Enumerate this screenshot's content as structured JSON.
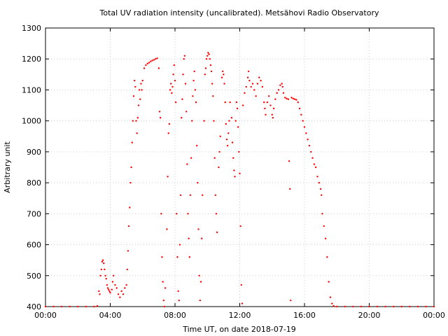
{
  "chart_data": {
    "type": "scatter",
    "title": "Total UV radiation intensity (uncalibrated). Metsähovi Radio Observatory",
    "xlabel": "Time UT, on date 2018-07-19",
    "ylabel": "Arbitrary unit",
    "xlim": [
      0,
      24
    ],
    "ylim": [
      400,
      1300
    ],
    "x_ticks": [
      {
        "value": 0,
        "label": "00:00"
      },
      {
        "value": 4,
        "label": "04:00"
      },
      {
        "value": 8,
        "label": "08:00"
      },
      {
        "value": 12,
        "label": "12:00"
      },
      {
        "value": 16,
        "label": "16:00"
      },
      {
        "value": 20,
        "label": "20:00"
      },
      {
        "value": 24,
        "label": "00:00"
      }
    ],
    "y_ticks": [
      {
        "value": 400,
        "label": "400"
      },
      {
        "value": 500,
        "label": "500"
      },
      {
        "value": 600,
        "label": "600"
      },
      {
        "value": 700,
        "label": "700"
      },
      {
        "value": 800,
        "label": "800"
      },
      {
        "value": 900,
        "label": "900"
      },
      {
        "value": 1000,
        "label": "1000"
      },
      {
        "value": 1100,
        "label": "1100"
      },
      {
        "value": 1200,
        "label": "1200"
      },
      {
        "value": 1300,
        "label": "1300"
      }
    ],
    "grid": true,
    "marker_color": "#ff0000",
    "series": [
      {
        "points": [
          [
            0.0,
            400
          ],
          [
            0.5,
            400
          ],
          [
            1.0,
            400
          ],
          [
            1.5,
            400
          ],
          [
            2.0,
            400
          ],
          [
            2.5,
            400
          ],
          [
            3.0,
            400
          ],
          [
            3.2,
            402
          ],
          [
            3.3,
            450
          ],
          [
            3.35,
            440
          ],
          [
            3.4,
            500
          ],
          [
            3.45,
            520
          ],
          [
            3.5,
            545
          ],
          [
            3.55,
            550
          ],
          [
            3.6,
            540
          ],
          [
            3.65,
            520
          ],
          [
            3.7,
            500
          ],
          [
            3.75,
            490
          ],
          [
            3.8,
            470
          ],
          [
            3.85,
            460
          ],
          [
            3.9,
            455
          ],
          [
            3.95,
            450
          ],
          [
            4.0,
            445
          ],
          [
            4.1,
            455
          ],
          [
            4.15,
            480
          ],
          [
            4.2,
            500
          ],
          [
            4.3,
            470
          ],
          [
            4.4,
            460
          ],
          [
            4.5,
            440
          ],
          [
            4.6,
            430
          ],
          [
            4.7,
            450
          ],
          [
            4.8,
            440
          ],
          [
            4.9,
            460
          ],
          [
            5.0,
            470
          ],
          [
            5.05,
            520
          ],
          [
            5.1,
            580
          ],
          [
            5.15,
            660
          ],
          [
            5.2,
            720
          ],
          [
            5.25,
            800
          ],
          [
            5.3,
            850
          ],
          [
            5.35,
            930
          ],
          [
            5.4,
            1000
          ],
          [
            5.45,
            1080
          ],
          [
            5.5,
            1130
          ],
          [
            5.55,
            1110
          ],
          [
            5.6,
            1000
          ],
          [
            5.65,
            960
          ],
          [
            5.7,
            1010
          ],
          [
            5.75,
            1050
          ],
          [
            5.8,
            1100
          ],
          [
            5.85,
            1070
          ],
          [
            5.9,
            1120
          ],
          [
            5.95,
            1100
          ],
          [
            6.0,
            1130
          ],
          [
            6.1,
            1170
          ],
          [
            6.2,
            1180
          ],
          [
            6.3,
            1185
          ],
          [
            6.4,
            1188
          ],
          [
            6.5,
            1192
          ],
          [
            6.6,
            1195
          ],
          [
            6.7,
            1197
          ],
          [
            6.8,
            1200
          ],
          [
            6.9,
            1202
          ],
          [
            7.0,
            1170
          ],
          [
            7.05,
            1030
          ],
          [
            7.1,
            1010
          ],
          [
            7.15,
            700
          ],
          [
            7.2,
            560
          ],
          [
            7.25,
            480
          ],
          [
            7.3,
            420
          ],
          [
            7.35,
            400
          ],
          [
            7.4,
            460
          ],
          [
            7.5,
            650
          ],
          [
            7.55,
            820
          ],
          [
            7.6,
            960
          ],
          [
            7.65,
            990
          ],
          [
            7.7,
            1100
          ],
          [
            7.75,
            1120
          ],
          [
            7.8,
            1090
          ],
          [
            7.85,
            1110
          ],
          [
            7.9,
            1150
          ],
          [
            7.95,
            1180
          ],
          [
            8.0,
            1130
          ],
          [
            8.05,
            1060
          ],
          [
            8.1,
            700
          ],
          [
            8.15,
            560
          ],
          [
            8.2,
            450
          ],
          [
            8.25,
            420
          ],
          [
            8.3,
            600
          ],
          [
            8.35,
            760
          ],
          [
            8.4,
            1010
          ],
          [
            8.45,
            1070
          ],
          [
            8.5,
            1150
          ],
          [
            8.55,
            1200
          ],
          [
            8.6,
            1210
          ],
          [
            8.65,
            1120
          ],
          [
            8.7,
            1030
          ],
          [
            8.75,
            860
          ],
          [
            8.8,
            700
          ],
          [
            8.85,
            620
          ],
          [
            8.9,
            560
          ],
          [
            8.95,
            760
          ],
          [
            9.0,
            880
          ],
          [
            9.05,
            1000
          ],
          [
            9.1,
            1080
          ],
          [
            9.15,
            1130
          ],
          [
            9.2,
            1160
          ],
          [
            9.25,
            1100
          ],
          [
            9.3,
            1060
          ],
          [
            9.35,
            920
          ],
          [
            9.4,
            800
          ],
          [
            9.45,
            650
          ],
          [
            9.5,
            500
          ],
          [
            9.55,
            420
          ],
          [
            9.6,
            480
          ],
          [
            9.65,
            620
          ],
          [
            9.7,
            760
          ],
          [
            9.8,
            1000
          ],
          [
            9.85,
            1150
          ],
          [
            9.9,
            1170
          ],
          [
            9.95,
            1200
          ],
          [
            10.0,
            1210
          ],
          [
            10.05,
            1220
          ],
          [
            10.1,
            1215
          ],
          [
            10.15,
            1200
          ],
          [
            10.2,
            1180
          ],
          [
            10.25,
            1160
          ],
          [
            10.3,
            1120
          ],
          [
            10.35,
            1080
          ],
          [
            10.4,
            1000
          ],
          [
            10.45,
            880
          ],
          [
            10.5,
            760
          ],
          [
            10.55,
            700
          ],
          [
            10.6,
            640
          ],
          [
            10.7,
            850
          ],
          [
            10.75,
            900
          ],
          [
            10.8,
            950
          ],
          [
            10.9,
            1140
          ],
          [
            10.95,
            1160
          ],
          [
            11.0,
            1150
          ],
          [
            11.05,
            1120
          ],
          [
            11.1,
            1060
          ],
          [
            11.15,
            990
          ],
          [
            11.2,
            940
          ],
          [
            11.25,
            920
          ],
          [
            11.3,
            960
          ],
          [
            11.35,
            1000
          ],
          [
            11.4,
            1060
          ],
          [
            11.5,
            1010
          ],
          [
            11.55,
            930
          ],
          [
            11.6,
            880
          ],
          [
            11.65,
            840
          ],
          [
            11.7,
            820
          ],
          [
            11.75,
            1000
          ],
          [
            11.8,
            1060
          ],
          [
            11.85,
            1040
          ],
          [
            11.9,
            980
          ],
          [
            11.95,
            900
          ],
          [
            12.0,
            830
          ],
          [
            12.05,
            660
          ],
          [
            12.1,
            470
          ],
          [
            12.15,
            410
          ],
          [
            12.2,
            1050
          ],
          [
            12.3,
            1090
          ],
          [
            12.4,
            1110
          ],
          [
            12.5,
            1140
          ],
          [
            12.55,
            1160
          ],
          [
            12.6,
            1130
          ],
          [
            12.7,
            1110
          ],
          [
            12.8,
            1120
          ],
          [
            12.9,
            1100
          ],
          [
            13.0,
            1080
          ],
          [
            13.1,
            1120
          ],
          [
            13.2,
            1140
          ],
          [
            13.3,
            1130
          ],
          [
            13.4,
            1110
          ],
          [
            13.5,
            1060
          ],
          [
            13.55,
            1040
          ],
          [
            13.6,
            1020
          ],
          [
            13.7,
            1060
          ],
          [
            13.8,
            1080
          ],
          [
            13.9,
            1050
          ],
          [
            14.0,
            1020
          ],
          [
            14.05,
            1010
          ],
          [
            14.1,
            1040
          ],
          [
            14.2,
            1070
          ],
          [
            14.3,
            1090
          ],
          [
            14.4,
            1100
          ],
          [
            14.5,
            1115
          ],
          [
            14.6,
            1120
          ],
          [
            14.65,
            1110
          ],
          [
            14.7,
            1090
          ],
          [
            14.8,
            1075
          ],
          [
            14.9,
            1072
          ],
          [
            15.0,
            1070
          ],
          [
            15.05,
            870
          ],
          [
            15.1,
            780
          ],
          [
            15.15,
            420
          ],
          [
            15.2,
            1075
          ],
          [
            15.3,
            1072
          ],
          [
            15.4,
            1070
          ],
          [
            15.5,
            1068
          ],
          [
            15.6,
            1060
          ],
          [
            15.7,
            1040
          ],
          [
            15.8,
            1020
          ],
          [
            15.9,
            1000
          ],
          [
            16.0,
            980
          ],
          [
            16.1,
            960
          ],
          [
            16.2,
            940
          ],
          [
            16.3,
            920
          ],
          [
            16.4,
            900
          ],
          [
            16.5,
            880
          ],
          [
            16.6,
            860
          ],
          [
            16.7,
            850
          ],
          [
            16.8,
            820
          ],
          [
            16.9,
            800
          ],
          [
            17.0,
            780
          ],
          [
            17.05,
            760
          ],
          [
            17.1,
            700
          ],
          [
            17.2,
            660
          ],
          [
            17.3,
            620
          ],
          [
            17.4,
            560
          ],
          [
            17.5,
            480
          ],
          [
            17.6,
            430
          ],
          [
            17.7,
            410
          ],
          [
            17.8,
            402
          ],
          [
            18.0,
            400
          ],
          [
            18.5,
            400
          ],
          [
            19.0,
            400
          ],
          [
            19.5,
            400
          ],
          [
            20.0,
            400
          ],
          [
            20.5,
            400
          ],
          [
            21.0,
            400
          ],
          [
            21.5,
            400
          ],
          [
            22.0,
            400
          ],
          [
            22.5,
            400
          ],
          [
            23.0,
            400
          ],
          [
            23.5,
            400
          ],
          [
            24.0,
            400
          ]
        ]
      }
    ]
  }
}
